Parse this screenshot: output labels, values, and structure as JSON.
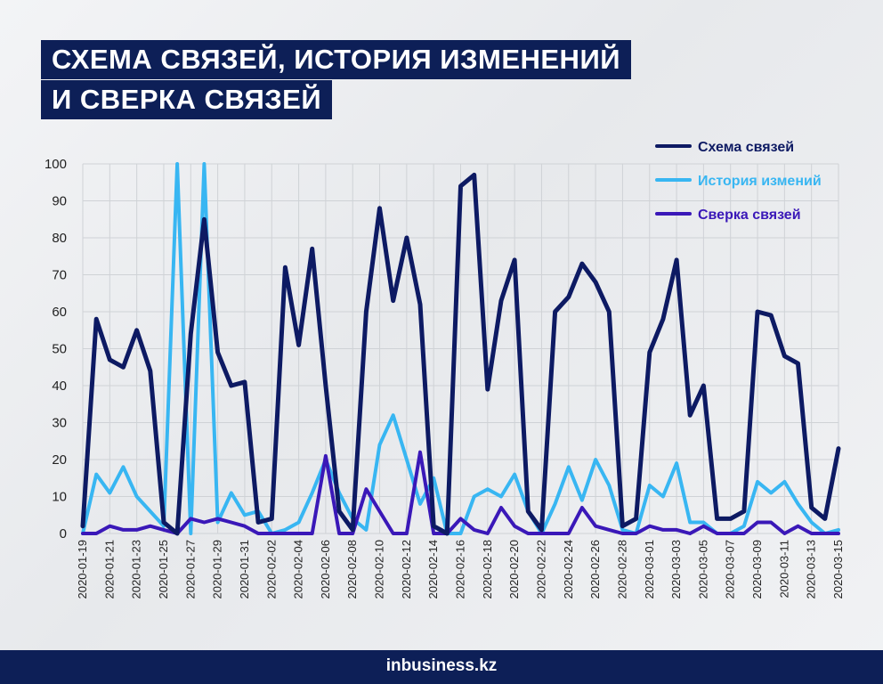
{
  "title_line1": "СХЕМА СВЯЗЕЙ, ИСТОРИЯ ИЗМЕНЕНИЙ",
  "title_line2": "И СВЕРКА СВЯЗЕЙ",
  "footer": {
    "brand": "inbusiness.kz"
  },
  "colors": {
    "background": "#eceef0",
    "banner": "#0d1f57",
    "grid": "#cfd2d6"
  },
  "chart_data": {
    "type": "line",
    "ylim": [
      0,
      100
    ],
    "yticks": [
      0,
      10,
      20,
      30,
      40,
      50,
      60,
      70,
      80,
      90,
      100
    ],
    "grid": true,
    "legend_placement": "top-right",
    "x": [
      "2020-01-19",
      "2020-01-20",
      "2020-01-21",
      "2020-01-22",
      "2020-01-23",
      "2020-01-24",
      "2020-01-25",
      "2020-01-26",
      "2020-01-27",
      "2020-01-28",
      "2020-01-29",
      "2020-01-30",
      "2020-01-31",
      "2020-02-01",
      "2020-02-02",
      "2020-02-03",
      "2020-02-04",
      "2020-02-05",
      "2020-02-06",
      "2020-02-07",
      "2020-02-08",
      "2020-02-09",
      "2020-02-10",
      "2020-02-11",
      "2020-02-12",
      "2020-02-13",
      "2020-02-14",
      "2020-02-15",
      "2020-02-16",
      "2020-02-17",
      "2020-02-18",
      "2020-02-19",
      "2020-02-20",
      "2020-02-21",
      "2020-02-22",
      "2020-02-23",
      "2020-02-24",
      "2020-02-25",
      "2020-02-26",
      "2020-02-27",
      "2020-02-28",
      "2020-02-29",
      "2020-03-01",
      "2020-03-02",
      "2020-03-03",
      "2020-03-04",
      "2020-03-05",
      "2020-03-06",
      "2020-03-07",
      "2020-03-08",
      "2020-03-09",
      "2020-03-10",
      "2020-03-11",
      "2020-03-12",
      "2020-03-13",
      "2020-03-14",
      "2020-03-15"
    ],
    "xtick_labels": [
      "2020-01-19",
      "2020-01-21",
      "2020-01-23",
      "2020-01-25",
      "2020-01-27",
      "2020-01-29",
      "2020-01-31",
      "2020-02-02",
      "2020-02-04",
      "2020-02-06",
      "2020-02-08",
      "2020-02-10",
      "2020-02-12",
      "2020-02-14",
      "2020-02-16",
      "2020-02-18",
      "2020-02-20",
      "2020-02-22",
      "2020-02-24",
      "2020-02-26",
      "2020-02-28",
      "2020-03-01",
      "2020-03-03",
      "2020-03-05",
      "2020-03-07",
      "2020-03-09",
      "2020-03-11",
      "2020-03-13",
      "2020-03-15"
    ],
    "series": [
      {
        "name": "Схема связей",
        "color": "#0d1a63",
        "values": [
          2,
          58,
          47,
          45,
          55,
          44,
          3,
          0,
          54,
          85,
          49,
          40,
          41,
          3,
          4,
          72,
          51,
          77,
          40,
          6,
          1,
          60,
          88,
          63,
          80,
          62,
          2,
          0,
          94,
          97,
          39,
          63,
          74,
          6,
          1,
          60,
          64,
          73,
          68,
          60,
          2,
          4,
          49,
          58,
          74,
          32,
          40,
          4,
          4,
          6,
          60,
          59,
          48,
          46,
          7,
          4,
          23
        ]
      },
      {
        "name": "История измений",
        "color": "#38b6f2",
        "values": [
          0,
          16,
          11,
          18,
          10,
          6,
          2,
          100,
          0,
          100,
          3,
          11,
          5,
          6,
          0,
          1,
          3,
          11,
          20,
          11,
          4,
          1,
          24,
          32,
          20,
          8,
          15,
          0,
          0,
          10,
          12,
          10,
          16,
          6,
          0,
          8,
          18,
          9,
          20,
          13,
          1,
          0,
          13,
          10,
          19,
          3,
          3,
          0,
          0,
          2,
          14,
          11,
          14,
          8,
          3,
          0,
          1
        ]
      },
      {
        "name": "Сверка связей",
        "color": "#3a18b8",
        "values": [
          0,
          0,
          2,
          1,
          1,
          2,
          1,
          0,
          4,
          3,
          4,
          3,
          2,
          0,
          0,
          0,
          0,
          0,
          21,
          0,
          0,
          12,
          6,
          0,
          0,
          22,
          0,
          0,
          4,
          1,
          0,
          7,
          2,
          0,
          0,
          0,
          0,
          7,
          2,
          1,
          0,
          0,
          2,
          1,
          1,
          0,
          2,
          0,
          0,
          0,
          3,
          3,
          0,
          2,
          0,
          0,
          0
        ]
      }
    ]
  }
}
